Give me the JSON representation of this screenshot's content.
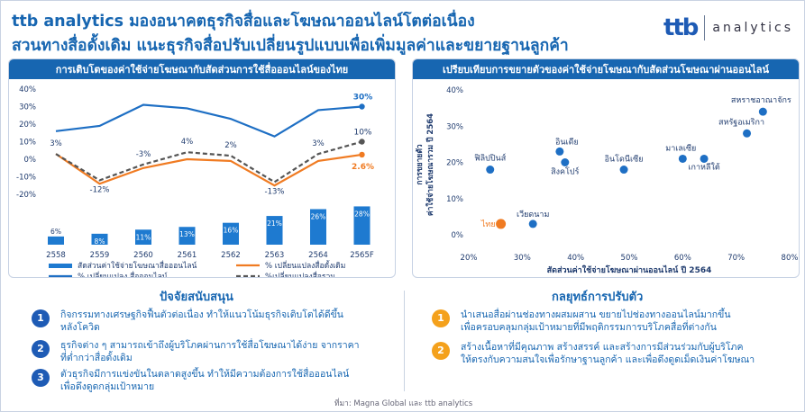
{
  "header": {
    "title_line1": "ttb analytics  มองอนาคตธุรกิจสื่อและโฆษณาออนไลน์โตต่อเนื่อง",
    "title_line2": "สวนทางสื่อดั้งเดิม แนะธุรกิจสื่อปรับเปลี่ยนรูปแบบเพื่อเพิ่มมูลค่าและขยายฐานลูกค้า",
    "logo_brand": "ttb",
    "logo_sub": "analytics"
  },
  "left_chart": {
    "heading": "การเติบโตของค่าใช้จ่ายโฆษณากับสัดส่วนการใช้สื่อออนไลน์ของไทย"
  },
  "right_chart": {
    "heading": "เปรียบเทียบการขยายตัวของค่าใช้จ่ายโฆษณากับสัดส่วนโฆษณาผ่านออนไลน์"
  },
  "chart_data": [
    {
      "type": "bar+line",
      "categories": [
        "2558",
        "2559",
        "2560",
        "2561",
        "2562",
        "2563",
        "2564",
        "2565F"
      ],
      "ylim": [
        -20,
        40
      ],
      "y_ticks": [
        "40%",
        "30%",
        "20%",
        "10%",
        "0%",
        "-10%",
        "-20%"
      ],
      "bars": {
        "name": "สัดส่วนค่าใช้จ่ายโฆษณาสื่อออนไลน์",
        "values": [
          6,
          8,
          11,
          13,
          16,
          21,
          26,
          28
        ],
        "labels": [
          "6%",
          "8%",
          "11%",
          "13%",
          "16%",
          "21%",
          "26%",
          "28%"
        ],
        "color": "#1e7ad0"
      },
      "series": [
        {
          "name": "% เปลี่ยนแปลง สื่อออนไลน์",
          "values": [
            16,
            19,
            31,
            29,
            23,
            13,
            28,
            30
          ],
          "color": "#1e6fc4",
          "style": "solid"
        },
        {
          "name": "% เปลี่ยนแปลงสื่อดั้งเดิม",
          "values": [
            3,
            -14,
            -5,
            0,
            -1,
            -15,
            -1,
            2.6
          ],
          "color": "#f07b22",
          "style": "solid"
        },
        {
          "name": "%เปลี่ยนแปลงสื่อรวม",
          "values": [
            3,
            -12,
            -3,
            4,
            2,
            -13,
            3,
            10
          ],
          "color": "#555555",
          "style": "dashed"
        }
      ],
      "data_labels": [
        {
          "text": "3%"
        },
        {
          "text": "-12%"
        },
        {
          "text": "-3%"
        },
        {
          "text": "4%"
        },
        {
          "text": "2%"
        },
        {
          "text": "-13%"
        },
        {
          "text": "3%"
        },
        {
          "text": "30%"
        },
        {
          "text": "10%"
        },
        {
          "text": "2.6%"
        }
      ]
    },
    {
      "type": "scatter",
      "xlabel": "สัดส่วนค่าใช้จ่ายโฆษณาผ่านออนไลน์ ปี 2564",
      "ylabel": "การขยายตัว\nค่าใช้จ่ายโฆษณารวม ปี 2564",
      "xlim": [
        20,
        80
      ],
      "ylim": [
        0,
        40
      ],
      "x_ticks": [
        "20%",
        "30%",
        "40%",
        "50%",
        "60%",
        "70%",
        "80%"
      ],
      "y_ticks": [
        "0%",
        "10%",
        "20%",
        "30%",
        "40%"
      ],
      "points": [
        {
          "label": "ไทย",
          "x": 26,
          "y": 3,
          "color": "#f07b22"
        },
        {
          "label": "เวียดนาม",
          "x": 32,
          "y": 3,
          "color": "#1e6fc4"
        },
        {
          "label": "ฟิลิปปินส์",
          "x": 24,
          "y": 18,
          "color": "#1e6fc4"
        },
        {
          "label": "อินเดีย",
          "x": 37,
          "y": 23,
          "color": "#1e6fc4"
        },
        {
          "label": "สิงคโปร์",
          "x": 38,
          "y": 20,
          "color": "#1e6fc4"
        },
        {
          "label": "อินโดนีเซีย",
          "x": 49,
          "y": 18,
          "color": "#1e6fc4"
        },
        {
          "label": "มาเลเซีย",
          "x": 60,
          "y": 21,
          "color": "#1e6fc4"
        },
        {
          "label": "เกาหลีใต้",
          "x": 64,
          "y": 21,
          "color": "#1e6fc4"
        },
        {
          "label": "สหรัฐอเมริกา",
          "x": 72,
          "y": 28,
          "color": "#1e6fc4"
        },
        {
          "label": "สหราชอาณาจักร",
          "x": 75,
          "y": 34,
          "color": "#1e6fc4"
        }
      ]
    }
  ],
  "support": {
    "title": "ปัจจัยสนับสนุน",
    "items": [
      {
        "num": "1",
        "line1": "กิจกรรมทางเศรษฐกิจฟื้นตัวต่อเนื่อง  ทำให้แนวโน้มธุรกิจเติบโตได้ดีขึ้น",
        "line2": "หลังโควิด"
      },
      {
        "num": "2",
        "line1": "ธุรกิจต่าง ๆ สามารถเข้าถึงผู้บริโภคผ่านการใช้สื่อโฆษณาได้ง่าย จากราคา",
        "line2": "ที่ต่ำกว่าสื่อดั้งเดิม"
      },
      {
        "num": "3",
        "line1": "ตัวธุรกิจมีการแข่งขันในตลาดสูงขึ้น  ทำให้มีความต้องการใช้สื่อออนไลน์",
        "line2": "เพื่อดึงดูดกลุ่มเป้าหมาย"
      }
    ]
  },
  "strategy": {
    "title": "กลยุทธ์การปรับตัว",
    "items": [
      {
        "num": "1",
        "line1": "นำเสนอสื่อผ่านช่องทางผสมผสาน ขยายไปช่องทางออนไลน์มากขึ้น",
        "line2": "เพื่อครอบคลุมกลุ่มเป้าหมายที่มีพฤติกรรมการบริโภคสื่อที่ต่างกัน"
      },
      {
        "num": "2",
        "line1": "สร้างเนื้อหาที่มีคุณภาพ สร้างสรรค์ และสร้างการมีส่วนร่วมกับผู้บริโภค",
        "line2": "ให้ตรงกับความสนใจเพื่อรักษาฐานลูกค้า และเพื่อดึงดูดเม็ดเงินค่าโฆษณา"
      }
    ]
  },
  "source": "ที่มา: Magna Global และ ttb analytics"
}
